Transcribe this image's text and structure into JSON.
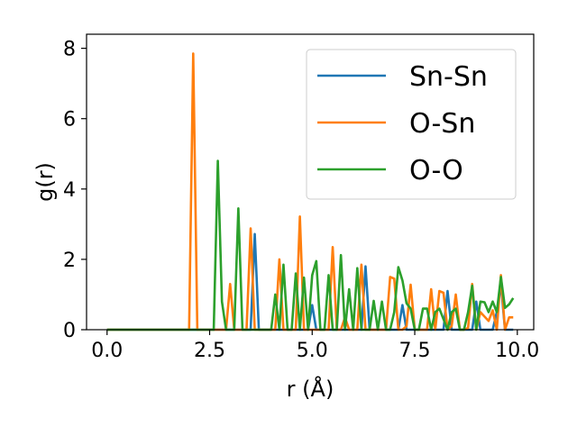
{
  "chart_data": {
    "type": "line",
    "xlabel": "r (Å)",
    "ylabel": "g(r)",
    "xlim": [
      -0.5,
      10.4
    ],
    "ylim": [
      0,
      8.4
    ],
    "xticks": [
      "0.0",
      "2.5",
      "5.0",
      "7.5",
      "10.0"
    ],
    "xtick_values": [
      0,
      2.5,
      5,
      7.5,
      10
    ],
    "yticks": [
      "0",
      "2",
      "4",
      "6",
      "8"
    ],
    "ytick_values": [
      0,
      2,
      4,
      6,
      8
    ],
    "grid": false,
    "legend_position": "top-right",
    "series": [
      {
        "name": "Sn-Sn",
        "color": "#1f77b4",
        "x": [
          0,
          3.5,
          3.6,
          3.7,
          4.9,
          5.0,
          5.1,
          6.2,
          6.3,
          6.4,
          7.1,
          7.2,
          7.3,
          8.2,
          8.3,
          8.4,
          8.9,
          9.0,
          9.1,
          9.4,
          9.5,
          9.6,
          9.7,
          9.8,
          9.9
        ],
        "values": [
          0,
          0,
          2.72,
          0,
          0,
          0.7,
          0,
          0,
          1.8,
          0,
          0,
          0.7,
          0,
          0,
          1.1,
          0,
          0,
          0.8,
          0,
          0,
          0.5,
          1.3,
          0,
          0,
          0
        ]
      },
      {
        "name": "O-Sn",
        "color": "#ff7f0e",
        "x": [
          0,
          2.0,
          2.1,
          2.2,
          2.9,
          3.0,
          3.1,
          3.2,
          3.3,
          3.4,
          3.5,
          3.6,
          4.1,
          4.2,
          4.3,
          4.6,
          4.7,
          4.8,
          5.4,
          5.5,
          5.6,
          5.7,
          5.8,
          5.9,
          6.1,
          6.2,
          6.3,
          6.4,
          6.8,
          6.9,
          7.0,
          7.1,
          7.2,
          7.3,
          7.4,
          7.5,
          7.6,
          7.8,
          7.9,
          8.0,
          8.1,
          8.2,
          8.3,
          8.4,
          8.5,
          8.6,
          8.7,
          8.8,
          8.9,
          9.0,
          9.1,
          9.3,
          9.4,
          9.5,
          9.6,
          9.7,
          9.8,
          9.9
        ],
        "values": [
          0,
          0,
          7.85,
          0,
          0,
          1.3,
          0,
          0,
          0,
          0,
          2.88,
          0,
          0,
          2.0,
          0,
          0,
          3.22,
          0,
          0,
          2.35,
          0,
          0,
          0.35,
          0,
          0,
          1.85,
          0,
          0,
          0,
          1.5,
          1.45,
          0,
          0,
          0.1,
          1.28,
          0,
          0,
          0,
          1.15,
          0,
          1.1,
          1.05,
          0,
          0.1,
          1.0,
          0,
          0,
          0.05,
          1.3,
          0,
          0.5,
          0.25,
          0.55,
          0,
          1.55,
          0,
          0.35,
          0.35
        ]
      },
      {
        "name": "O-O",
        "color": "#2ca02c",
        "x": [
          0,
          2.6,
          2.7,
          2.8,
          2.9,
          3.1,
          3.2,
          3.3,
          3.9,
          4.0,
          4.1,
          4.2,
          4.3,
          4.4,
          4.5,
          4.6,
          4.7,
          4.8,
          4.9,
          5.0,
          5.1,
          5.2,
          5.3,
          5.4,
          5.5,
          5.6,
          5.7,
          5.8,
          5.9,
          6.0,
          6.1,
          6.2,
          6.3,
          6.4,
          6.5,
          6.6,
          6.7,
          6.8,
          6.9,
          7.0,
          7.1,
          7.2,
          7.3,
          7.4,
          7.5,
          7.6,
          7.7,
          7.8,
          7.9,
          8.0,
          8.1,
          8.2,
          8.3,
          8.4,
          8.5,
          8.6,
          8.7,
          8.8,
          8.9,
          9.0,
          9.1,
          9.2,
          9.3,
          9.4,
          9.5,
          9.6,
          9.7,
          9.8,
          9.9
        ],
        "values": [
          0,
          0,
          4.8,
          0.8,
          0,
          0,
          3.45,
          0,
          0,
          0,
          1.0,
          0,
          1.85,
          0,
          0,
          1.6,
          0,
          1.48,
          0,
          1.55,
          1.95,
          0,
          0,
          1.55,
          0,
          0,
          2.12,
          0,
          1.15,
          0,
          1.75,
          0,
          0,
          0,
          0.82,
          0,
          0.8,
          0,
          0,
          0.5,
          1.78,
          1.4,
          0.75,
          0.6,
          0,
          0,
          0.6,
          0.6,
          0,
          0.5,
          0.6,
          0.3,
          0,
          0.5,
          0.6,
          0,
          0,
          0.5,
          1.25,
          0,
          0.8,
          0.78,
          0.5,
          0.8,
          0.5,
          1.5,
          0.62,
          0.72,
          0.9
        ]
      }
    ]
  }
}
